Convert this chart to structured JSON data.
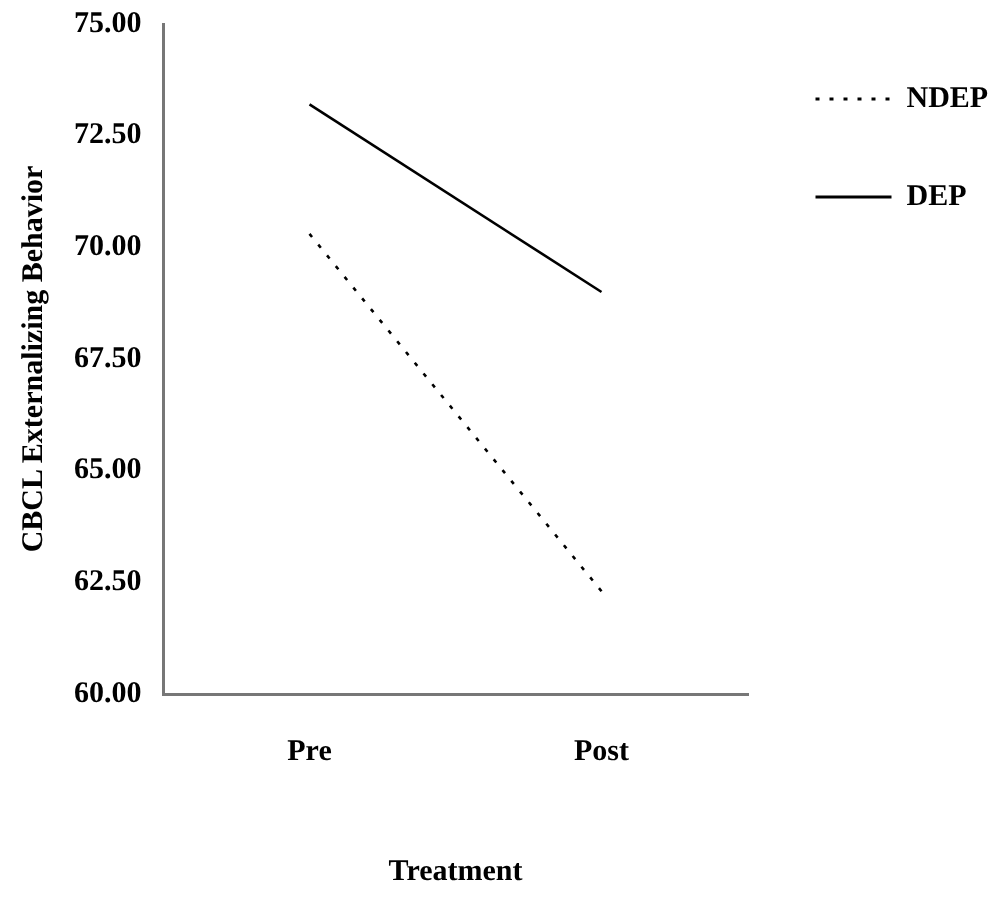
{
  "chart_data": {
    "type": "line",
    "xlabel": "Treatment",
    "ylabel": "CBCL Externalizing Behavior",
    "categories": [
      "Pre",
      "Post"
    ],
    "series": [
      {
        "name": "NDEP",
        "color": "#000000",
        "line_style": "dotted",
        "values": [
          70.3,
          62.3
        ]
      },
      {
        "name": "DEP",
        "color": "#000000",
        "line_style": "solid",
        "values": [
          73.2,
          69.0
        ]
      }
    ],
    "ylim": [
      60,
      75
    ],
    "yticks": [
      {
        "value": 60,
        "label": "60.00"
      },
      {
        "value": 62.5,
        "label": "62.50"
      },
      {
        "value": 65,
        "label": "65.00"
      },
      {
        "value": 67.5,
        "label": "67.50"
      },
      {
        "value": 70,
        "label": "70.00"
      },
      {
        "value": 72.5,
        "label": "72.50"
      },
      {
        "value": 75,
        "label": "75.00"
      }
    ],
    "grid": false,
    "legend": "top right",
    "marker": "none"
  }
}
